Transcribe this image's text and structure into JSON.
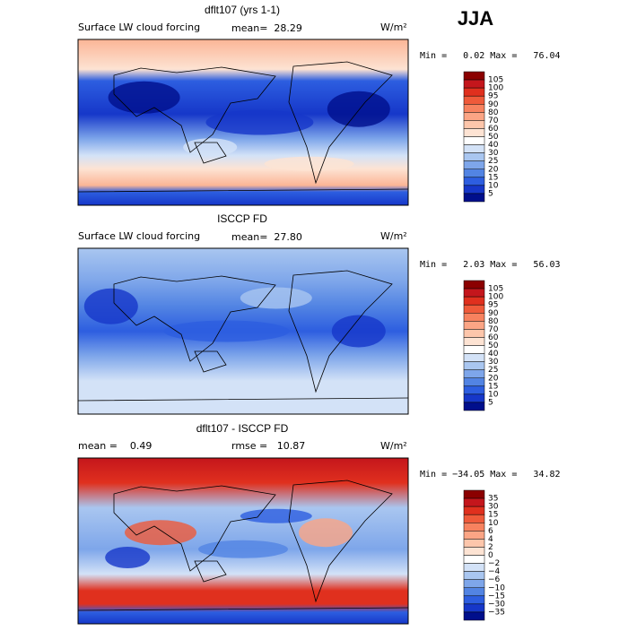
{
  "season": "JJA",
  "panels": [
    {
      "title": "dflt107 (yrs 1-1)",
      "variable": "Surface LW cloud forcing",
      "mean": "mean=  28.29",
      "units": "W/m²",
      "range": "Min =   0.02 Max =   76.04",
      "colorbar": {
        "labels": [
          "105",
          "100",
          "95",
          "90",
          "80",
          "70",
          "60",
          "50",
          "40",
          "30",
          "25",
          "20",
          "15",
          "10",
          "5"
        ],
        "colors": [
          "#8b0000",
          "#c4161c",
          "#e0301e",
          "#ef5a3a",
          "#f7825f",
          "#fba585",
          "#fdc6ab",
          "#fde3d3",
          "#ffffff",
          "#d3e2f7",
          "#a9c6f0",
          "#7ea6ea",
          "#5284e3",
          "#2d5ee0",
          "#1637c9",
          "#000f8c"
        ]
      }
    },
    {
      "title": "ISCCP FD",
      "variable": "Surface LW cloud forcing",
      "mean": "mean=  27.80",
      "units": "W/m²",
      "range": "Min =   2.03 Max =   56.03",
      "colorbar": {
        "labels": [
          "105",
          "100",
          "95",
          "90",
          "80",
          "70",
          "60",
          "50",
          "40",
          "30",
          "25",
          "20",
          "15",
          "10",
          "5"
        ],
        "colors": [
          "#8b0000",
          "#c4161c",
          "#e0301e",
          "#ef5a3a",
          "#f7825f",
          "#fba585",
          "#fdc6ab",
          "#fde3d3",
          "#ffffff",
          "#d3e2f7",
          "#a9c6f0",
          "#7ea6ea",
          "#5284e3",
          "#2d5ee0",
          "#1637c9",
          "#000f8c"
        ]
      }
    },
    {
      "title": "dflt107 - ISCCP FD",
      "mean": "mean =    0.49",
      "rmse": "rmse =   10.87",
      "units": "W/m²",
      "range": "Min = −34.05 Max =   34.82",
      "colorbar": {
        "labels": [
          "35",
          "30",
          "15",
          "10",
          "6",
          "4",
          "2",
          "0",
          "−2",
          "−4",
          "−6",
          "−10",
          "−15",
          "−30",
          "−35"
        ],
        "colors": [
          "#8b0000",
          "#c4161c",
          "#e0301e",
          "#ef5a3a",
          "#f7825f",
          "#fba585",
          "#fdc6ab",
          "#fde3d3",
          "#ffffff",
          "#d3e2f7",
          "#a9c6f0",
          "#7ea6ea",
          "#5284e3",
          "#2d5ee0",
          "#1637c9",
          "#000f8c"
        ]
      }
    }
  ]
}
